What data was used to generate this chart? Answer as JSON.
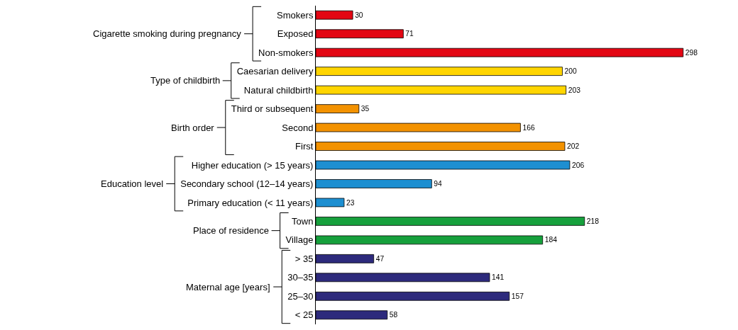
{
  "chart_data": {
    "type": "bar",
    "orientation": "horizontal",
    "data_labels": true,
    "legend": "left",
    "grid": false,
    "categories": [
      "Smokers",
      "Exposed",
      "Non-smokers",
      "Caesarian delivery",
      "Natural childbirth",
      "Third or subsequent",
      "Second",
      "First",
      "Higher education (> 15 years)",
      "Secondary school (12–14 years)",
      "Primary education (< 11 years)",
      "Town",
      "Village",
      "> 35",
      "30–35",
      "25–30",
      "< 25"
    ],
    "series": [
      {
        "name": "Cigarette smoking during pregnancy",
        "color": "#e30613",
        "values": [
          30,
          71,
          298,
          null,
          null,
          null,
          null,
          null,
          null,
          null,
          null,
          null,
          null,
          null,
          null,
          null,
          null
        ]
      },
      {
        "name": "Type of childbirth",
        "color": "#ffd500",
        "values": [
          null,
          null,
          null,
          200,
          203,
          null,
          null,
          null,
          null,
          null,
          null,
          null,
          null,
          null,
          null,
          null,
          null
        ]
      },
      {
        "name": "Birth order",
        "color": "#f39200",
        "values": [
          null,
          null,
          null,
          null,
          null,
          35,
          166,
          202,
          null,
          null,
          null,
          null,
          null,
          null,
          null,
          null,
          null
        ]
      },
      {
        "name": "Education level",
        "color": "#1d8fd1",
        "values": [
          null,
          null,
          null,
          null,
          null,
          null,
          null,
          null,
          206,
          94,
          23,
          null,
          null,
          null,
          null,
          null,
          null
        ]
      },
      {
        "name": "Place of residence",
        "color": "#16a03c",
        "values": [
          null,
          null,
          null,
          null,
          null,
          null,
          null,
          null,
          null,
          null,
          null,
          218,
          184,
          null,
          null,
          null,
          null
        ]
      },
      {
        "name": "Maternal age [years]",
        "color": "#2d2a7c",
        "values": [
          null,
          null,
          null,
          null,
          null,
          null,
          null,
          null,
          null,
          null,
          null,
          null,
          null,
          47,
          141,
          157,
          58
        ]
      }
    ]
  }
}
